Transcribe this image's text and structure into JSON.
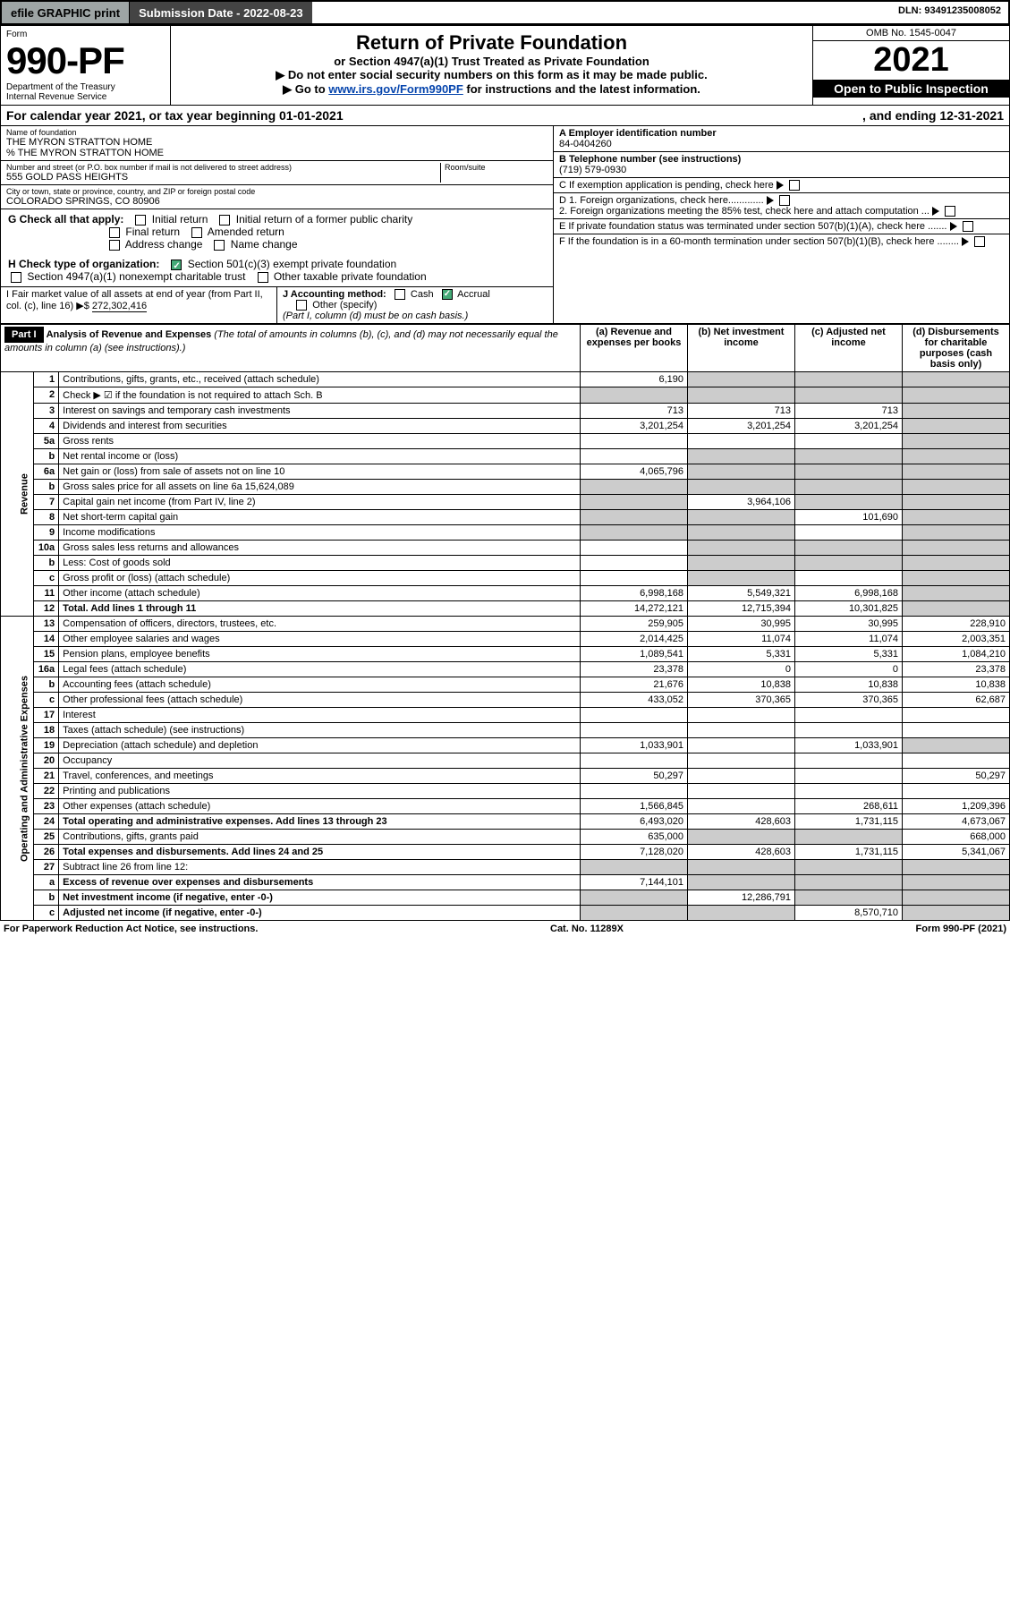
{
  "topbar": {
    "efile": "efile GRAPHIC print",
    "submission": "Submission Date - 2022-08-23",
    "dln": "DLN: 93491235008052"
  },
  "header": {
    "form_label": "Form",
    "form_no": "990-PF",
    "dept": "Department of the Treasury",
    "irs": "Internal Revenue Service",
    "title": "Return of Private Foundation",
    "subtitle": "or Section 4947(a)(1) Trust Treated as Private Foundation",
    "warn": "▶ Do not enter social security numbers on this form as it may be made public.",
    "goto_pre": "▶ Go to ",
    "goto_link": "www.irs.gov/Form990PF",
    "goto_post": " for instructions and the latest information.",
    "omb": "OMB No. 1545-0047",
    "year": "2021",
    "open": "Open to Public Inspection"
  },
  "cal": {
    "begin_label": "For calendar year 2021, or tax year beginning 01-01-2021",
    "end_label": ", and ending 12-31-2021"
  },
  "org": {
    "name_label": "Name of foundation",
    "name": "THE MYRON STRATTON HOME",
    "co": "% THE MYRON STRATTON HOME",
    "addr_label": "Number and street (or P.O. box number if mail is not delivered to street address)",
    "addr": "555 GOLD PASS HEIGHTS",
    "room_label": "Room/suite",
    "city_label": "City or town, state or province, country, and ZIP or foreign postal code",
    "city": "COLORADO SPRINGS, CO  80906",
    "a_label": "A Employer identification number",
    "ein": "84-0404260",
    "b_label": "B Telephone number (see instructions)",
    "phone": "(719) 579-0930",
    "c_label": "C If exemption application is pending, check here",
    "d1": "D 1. Foreign organizations, check here.............",
    "d2": "2. Foreign organizations meeting the 85% test, check here and attach computation ...",
    "e_label": "E  If private foundation status was terminated under section 507(b)(1)(A), check here .......",
    "f_label": "F  If the foundation is in a 60-month termination under section 507(b)(1)(B), check here ........"
  },
  "g": {
    "label": "G Check all that apply:",
    "o1": "Initial return",
    "o2": "Initial return of a former public charity",
    "o3": "Final return",
    "o4": "Amended return",
    "o5": "Address change",
    "o6": "Name change"
  },
  "h": {
    "label": "H Check type of organization:",
    "o1": "Section 501(c)(3) exempt private foundation",
    "o2": "Section 4947(a)(1) nonexempt charitable trust",
    "o3": "Other taxable private foundation"
  },
  "i": {
    "label": "I Fair market value of all assets at end of year (from Part II, col. (c), line 16) ▶$ ",
    "val": "272,302,416"
  },
  "j": {
    "label": "J Accounting method:",
    "cash": "Cash",
    "accrual": "Accrual",
    "other": "Other (specify)",
    "note": "(Part I, column (d) must be on cash basis.)"
  },
  "part1": {
    "label": "Part I",
    "title": "Analysis of Revenue and Expenses",
    "note": " (The total of amounts in columns (b), (c), and (d) may not necessarily equal the amounts in column (a) (see instructions).)",
    "col_a": "(a) Revenue and expenses per books",
    "col_b": "(b) Net investment income",
    "col_c": "(c) Adjusted net income",
    "col_d": "(d) Disbursements for charitable purposes (cash basis only)"
  },
  "rev_label": "Revenue",
  "exp_label": "Operating and Administrative Expenses",
  "rows": [
    {
      "ln": "1",
      "desc": "Contributions, gifts, grants, etc., received (attach schedule)",
      "a": "6,190",
      "b": "",
      "c": "",
      "d": "",
      "grey_b": true,
      "grey_c": true,
      "grey_d": true
    },
    {
      "ln": "2",
      "desc": "Check ▶ ☑ if the foundation is not required to attach Sch. B",
      "a": "",
      "b": "",
      "c": "",
      "d": "",
      "grey_a": true,
      "grey_b": true,
      "grey_c": true,
      "grey_d": true
    },
    {
      "ln": "3",
      "desc": "Interest on savings and temporary cash investments",
      "a": "713",
      "b": "713",
      "c": "713",
      "d": "",
      "grey_d": true
    },
    {
      "ln": "4",
      "desc": "Dividends and interest from securities",
      "a": "3,201,254",
      "b": "3,201,254",
      "c": "3,201,254",
      "d": "",
      "grey_d": true
    },
    {
      "ln": "5a",
      "desc": "Gross rents",
      "a": "",
      "b": "",
      "c": "",
      "d": "",
      "grey_d": true
    },
    {
      "ln": "b",
      "desc": "Net rental income or (loss)",
      "a": "",
      "b": "",
      "c": "",
      "d": "",
      "grey_b": true,
      "grey_c": true,
      "grey_d": true
    },
    {
      "ln": "6a",
      "desc": "Net gain or (loss) from sale of assets not on line 10",
      "a": "4,065,796",
      "b": "",
      "c": "",
      "d": "",
      "grey_b": true,
      "grey_c": true,
      "grey_d": true
    },
    {
      "ln": "b",
      "desc": "Gross sales price for all assets on line 6a         15,624,089",
      "a": "",
      "b": "",
      "c": "",
      "d": "",
      "grey_a": true,
      "grey_b": true,
      "grey_c": true,
      "grey_d": true
    },
    {
      "ln": "7",
      "desc": "Capital gain net income (from Part IV, line 2)",
      "a": "",
      "b": "3,964,106",
      "c": "",
      "d": "",
      "grey_a": true,
      "grey_c": true,
      "grey_d": true
    },
    {
      "ln": "8",
      "desc": "Net short-term capital gain",
      "a": "",
      "b": "",
      "c": "101,690",
      "d": "",
      "grey_a": true,
      "grey_b": true,
      "grey_d": true
    },
    {
      "ln": "9",
      "desc": "Income modifications",
      "a": "",
      "b": "",
      "c": "",
      "d": "",
      "grey_a": true,
      "grey_b": true,
      "grey_d": true
    },
    {
      "ln": "10a",
      "desc": "Gross sales less returns and allowances",
      "a": "",
      "b": "",
      "c": "",
      "d": "",
      "grey_b": true,
      "grey_c": true,
      "grey_d": true
    },
    {
      "ln": "b",
      "desc": "Less: Cost of goods sold",
      "a": "",
      "b": "",
      "c": "",
      "d": "",
      "grey_b": true,
      "grey_c": true,
      "grey_d": true
    },
    {
      "ln": "c",
      "desc": "Gross profit or (loss) (attach schedule)",
      "a": "",
      "b": "",
      "c": "",
      "d": "",
      "grey_b": true,
      "grey_d": true
    },
    {
      "ln": "11",
      "desc": "Other income (attach schedule)",
      "a": "6,998,168",
      "b": "5,549,321",
      "c": "6,998,168",
      "d": "",
      "grey_d": true
    },
    {
      "ln": "12",
      "desc": "Total. Add lines 1 through 11",
      "a": "14,272,121",
      "b": "12,715,394",
      "c": "10,301,825",
      "d": "",
      "grey_d": true,
      "bold": true
    },
    {
      "ln": "13",
      "desc": "Compensation of officers, directors, trustees, etc.",
      "a": "259,905",
      "b": "30,995",
      "c": "30,995",
      "d": "228,910"
    },
    {
      "ln": "14",
      "desc": "Other employee salaries and wages",
      "a": "2,014,425",
      "b": "11,074",
      "c": "11,074",
      "d": "2,003,351"
    },
    {
      "ln": "15",
      "desc": "Pension plans, employee benefits",
      "a": "1,089,541",
      "b": "5,331",
      "c": "5,331",
      "d": "1,084,210"
    },
    {
      "ln": "16a",
      "desc": "Legal fees (attach schedule)",
      "a": "23,378",
      "b": "0",
      "c": "0",
      "d": "23,378"
    },
    {
      "ln": "b",
      "desc": "Accounting fees (attach schedule)",
      "a": "21,676",
      "b": "10,838",
      "c": "10,838",
      "d": "10,838"
    },
    {
      "ln": "c",
      "desc": "Other professional fees (attach schedule)",
      "a": "433,052",
      "b": "370,365",
      "c": "370,365",
      "d": "62,687"
    },
    {
      "ln": "17",
      "desc": "Interest",
      "a": "",
      "b": "",
      "c": "",
      "d": ""
    },
    {
      "ln": "18",
      "desc": "Taxes (attach schedule) (see instructions)",
      "a": "",
      "b": "",
      "c": "",
      "d": ""
    },
    {
      "ln": "19",
      "desc": "Depreciation (attach schedule) and depletion",
      "a": "1,033,901",
      "b": "",
      "c": "1,033,901",
      "d": "",
      "grey_d": true
    },
    {
      "ln": "20",
      "desc": "Occupancy",
      "a": "",
      "b": "",
      "c": "",
      "d": ""
    },
    {
      "ln": "21",
      "desc": "Travel, conferences, and meetings",
      "a": "50,297",
      "b": "",
      "c": "",
      "d": "50,297"
    },
    {
      "ln": "22",
      "desc": "Printing and publications",
      "a": "",
      "b": "",
      "c": "",
      "d": ""
    },
    {
      "ln": "23",
      "desc": "Other expenses (attach schedule)",
      "a": "1,566,845",
      "b": "",
      "c": "268,611",
      "d": "1,209,396"
    },
    {
      "ln": "24",
      "desc": "Total operating and administrative expenses. Add lines 13 through 23",
      "a": "6,493,020",
      "b": "428,603",
      "c": "1,731,115",
      "d": "4,673,067",
      "bold": true
    },
    {
      "ln": "25",
      "desc": "Contributions, gifts, grants paid",
      "a": "635,000",
      "b": "",
      "c": "",
      "d": "668,000",
      "grey_b": true,
      "grey_c": true
    },
    {
      "ln": "26",
      "desc": "Total expenses and disbursements. Add lines 24 and 25",
      "a": "7,128,020",
      "b": "428,603",
      "c": "1,731,115",
      "d": "5,341,067",
      "bold": true
    },
    {
      "ln": "27",
      "desc": "Subtract line 26 from line 12:",
      "a": "",
      "b": "",
      "c": "",
      "d": "",
      "grey_a": true,
      "grey_b": true,
      "grey_c": true,
      "grey_d": true
    },
    {
      "ln": "a",
      "desc": "Excess of revenue over expenses and disbursements",
      "a": "7,144,101",
      "b": "",
      "c": "",
      "d": "",
      "grey_b": true,
      "grey_c": true,
      "grey_d": true,
      "bold": true
    },
    {
      "ln": "b",
      "desc": "Net investment income (if negative, enter -0-)",
      "a": "",
      "b": "12,286,791",
      "c": "",
      "d": "",
      "grey_a": true,
      "grey_c": true,
      "grey_d": true,
      "bold": true
    },
    {
      "ln": "c",
      "desc": "Adjusted net income (if negative, enter -0-)",
      "a": "",
      "b": "",
      "c": "8,570,710",
      "d": "",
      "grey_a": true,
      "grey_b": true,
      "grey_d": true,
      "bold": true
    }
  ],
  "footer": {
    "left": "For Paperwork Reduction Act Notice, see instructions.",
    "mid": "Cat. No. 11289X",
    "right": "Form 990-PF (2021)"
  }
}
